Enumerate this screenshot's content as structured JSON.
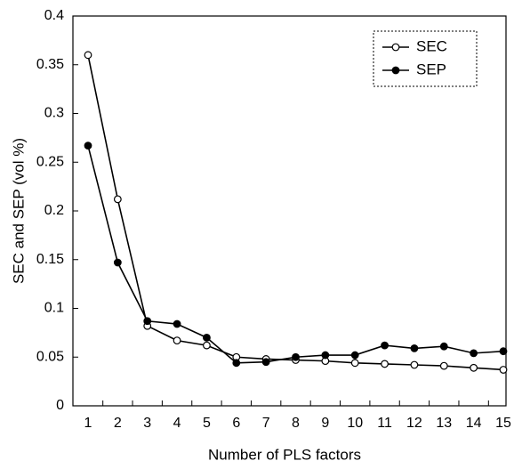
{
  "chart_data": {
    "type": "line",
    "xlabel": "Number of PLS factors",
    "ylabel": "SEC and SEP (vol %)",
    "categories": [
      "1",
      "2",
      "3",
      "4",
      "5",
      "6",
      "7",
      "8",
      "9",
      "10",
      "11",
      "12",
      "13",
      "14",
      "15"
    ],
    "series": [
      {
        "name": "SEC",
        "color": "#000000",
        "marker_fill": "#ffffff",
        "values": [
          0.36,
          0.212,
          0.082,
          0.067,
          0.062,
          0.05,
          0.048,
          0.047,
          0.046,
          0.044,
          0.043,
          0.042,
          0.041,
          0.039,
          0.037
        ]
      },
      {
        "name": "SEP",
        "color": "#000000",
        "marker_fill": "#000000",
        "values": [
          0.267,
          0.147,
          0.087,
          0.084,
          0.07,
          0.044,
          0.045,
          0.05,
          0.052,
          0.052,
          0.062,
          0.059,
          0.061,
          0.054,
          0.056
        ]
      }
    ],
    "ylim": [
      0,
      0.4
    ],
    "yticks": [
      0,
      0.05,
      0.1,
      0.15,
      0.2,
      0.25,
      0.3,
      0.35,
      0.4
    ],
    "grid": false,
    "legend": "upper-right"
  }
}
